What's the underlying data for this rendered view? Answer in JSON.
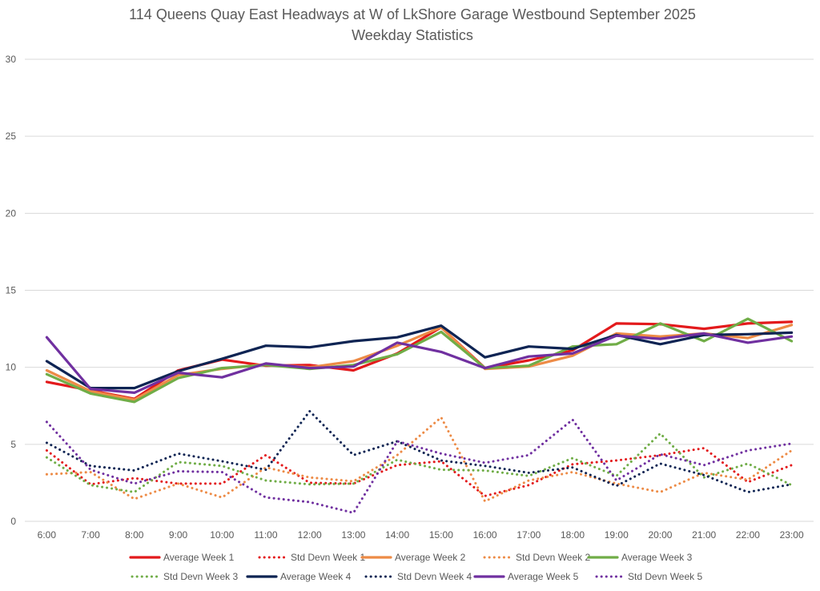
{
  "chart_data": {
    "type": "line",
    "title": "114 Queens Quay East Headways at W of LkShore Garage Westbound September 2025",
    "subtitle": "Weekday Statistics",
    "xlabel": "",
    "ylabel": "",
    "ylim": [
      0,
      30
    ],
    "yticks": [
      0,
      5,
      10,
      15,
      20,
      25,
      30
    ],
    "grid": true,
    "legend_position": "bottom",
    "categories": [
      "6:00",
      "7:00",
      "8:00",
      "9:00",
      "10:00",
      "11:00",
      "12:00",
      "13:00",
      "14:00",
      "15:00",
      "16:00",
      "17:00",
      "18:00",
      "19:00",
      "20:00",
      "21:00",
      "22:00",
      "23:00"
    ],
    "series": [
      {
        "name": "Average Week 1",
        "color": "#e31a1c",
        "style": "solid",
        "values": [
          9.05,
          8.5,
          7.95,
          9.8,
          10.5,
          10.1,
          10.15,
          9.8,
          10.9,
          12.6,
          9.95,
          10.45,
          11.1,
          12.85,
          12.8,
          12.5,
          12.85,
          12.95
        ]
      },
      {
        "name": "Std Devn Week 1",
        "color": "#e31a1c",
        "style": "dotted",
        "values": [
          4.6,
          2.4,
          2.8,
          2.45,
          2.45,
          4.3,
          2.5,
          2.45,
          3.65,
          3.9,
          1.65,
          2.35,
          3.7,
          3.95,
          4.3,
          4.75,
          2.55,
          3.65
        ]
      },
      {
        "name": "Average Week 2",
        "color": "#ed8b46",
        "style": "solid",
        "values": [
          9.8,
          8.45,
          7.9,
          9.5,
          9.9,
          10.2,
          10.0,
          10.4,
          11.4,
          12.6,
          9.9,
          10.05,
          10.75,
          12.2,
          12.0,
          12.2,
          11.9,
          12.75
        ]
      },
      {
        "name": "Std Devn Week 2",
        "color": "#ed8b46",
        "style": "dotted",
        "values": [
          3.05,
          3.2,
          1.45,
          2.45,
          1.55,
          3.5,
          2.85,
          2.6,
          4.3,
          6.75,
          1.3,
          2.65,
          3.2,
          2.45,
          1.9,
          3.15,
          2.7,
          4.6
        ]
      },
      {
        "name": "Average Week 3",
        "color": "#70ad47",
        "style": "solid",
        "values": [
          9.55,
          8.3,
          7.75,
          9.3,
          9.95,
          10.15,
          9.9,
          10.15,
          10.85,
          12.3,
          9.95,
          10.1,
          11.35,
          11.5,
          12.85,
          11.7,
          13.15,
          11.7
        ]
      },
      {
        "name": "Std Devn Week 3",
        "color": "#70ad47",
        "style": "dotted",
        "values": [
          4.15,
          2.35,
          1.9,
          3.85,
          3.6,
          2.65,
          2.4,
          2.45,
          4.0,
          3.35,
          3.3,
          2.95,
          4.1,
          2.95,
          5.7,
          2.85,
          3.75,
          2.35
        ]
      },
      {
        "name": "Average Week 4",
        "color": "#0e2453",
        "style": "solid",
        "values": [
          10.4,
          8.65,
          8.65,
          9.75,
          10.55,
          11.4,
          11.3,
          11.7,
          11.95,
          12.7,
          10.65,
          11.35,
          11.2,
          12.1,
          11.5,
          12.1,
          12.15,
          12.25
        ]
      },
      {
        "name": "Std Devn Week 4",
        "color": "#0e2453",
        "style": "dotted",
        "values": [
          5.1,
          3.6,
          3.3,
          4.4,
          3.9,
          3.35,
          7.15,
          4.3,
          5.2,
          3.95,
          3.6,
          3.15,
          3.5,
          2.3,
          3.75,
          3.0,
          1.9,
          2.4
        ]
      },
      {
        "name": "Average Week 5",
        "color": "#7030a0",
        "style": "solid",
        "values": [
          11.95,
          8.6,
          8.35,
          9.65,
          9.35,
          10.25,
          9.95,
          10.05,
          11.6,
          11.0,
          9.95,
          10.7,
          10.9,
          12.05,
          11.85,
          12.2,
          11.6,
          12.0
        ]
      },
      {
        "name": "Std Devn Week 5",
        "color": "#7030a0",
        "style": "dotted",
        "values": [
          6.45,
          3.35,
          2.45,
          3.25,
          3.2,
          1.55,
          1.25,
          0.55,
          5.2,
          4.4,
          3.8,
          4.3,
          6.6,
          2.65,
          4.35,
          3.65,
          4.6,
          5.05
        ]
      }
    ]
  }
}
